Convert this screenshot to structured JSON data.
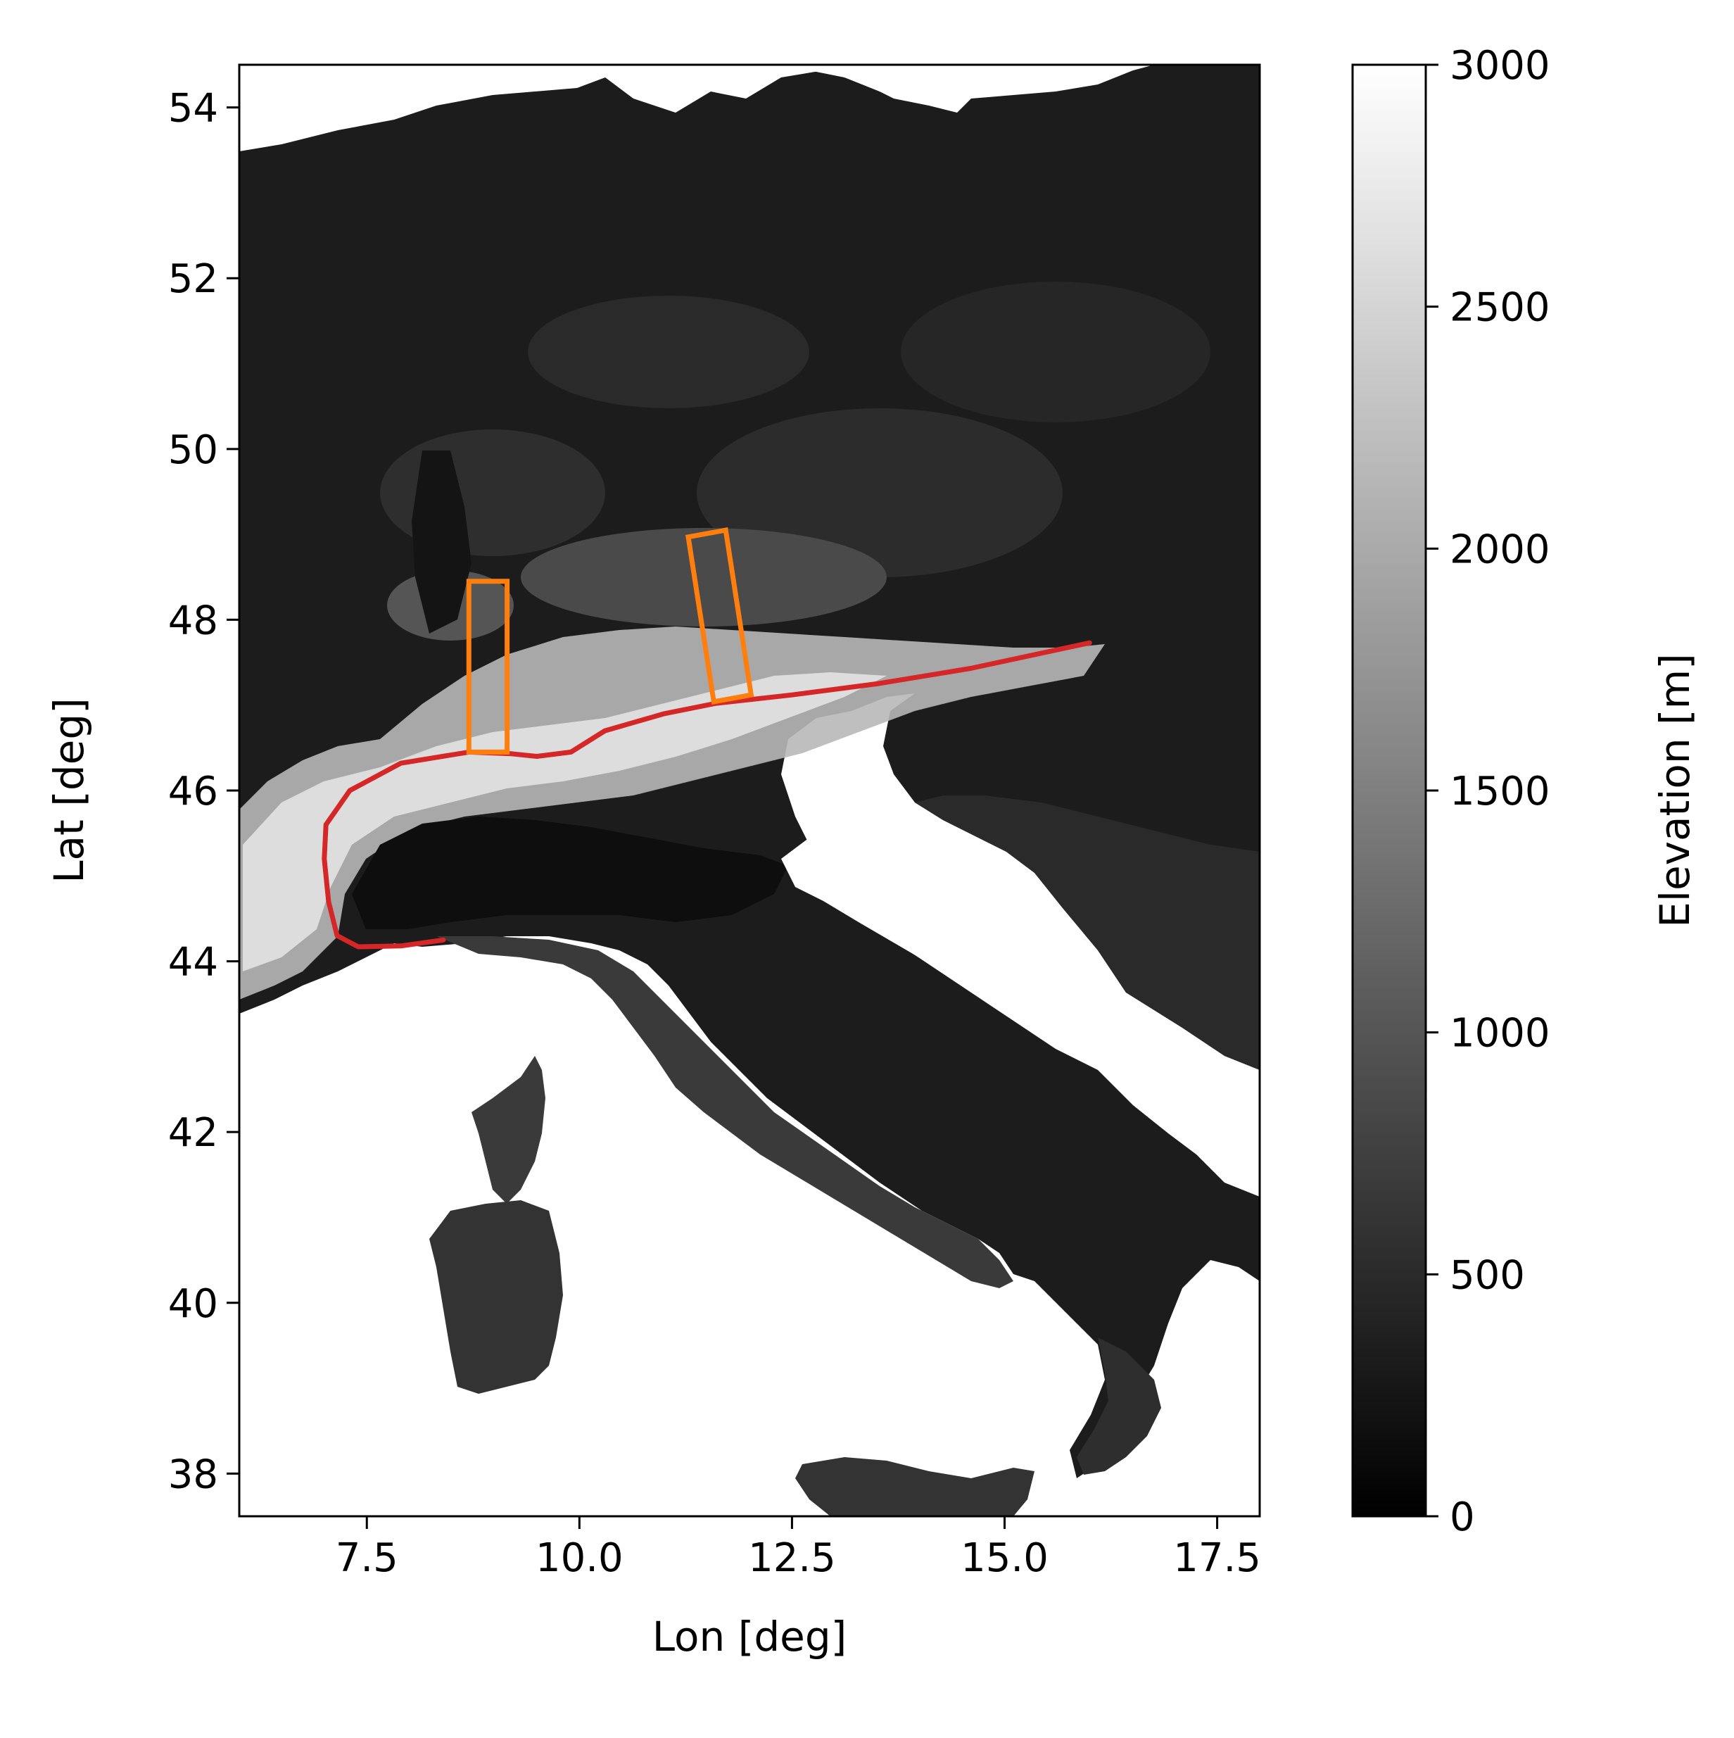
{
  "chart_data": {
    "type": "map",
    "xlabel": "Lon [deg]",
    "ylabel": "Lat [deg]",
    "xlim": [
      6.0,
      18.0
    ],
    "ylim": [
      37.5,
      54.5
    ],
    "x_ticks": [
      7.5,
      10.0,
      12.5,
      15.0,
      17.5
    ],
    "x_tick_labels": [
      "7.5",
      "10.0",
      "12.5",
      "15.0",
      "17.5"
    ],
    "y_ticks": [
      38,
      40,
      42,
      44,
      46,
      48,
      50,
      52,
      54
    ],
    "y_tick_labels": [
      "38",
      "40",
      "42",
      "44",
      "46",
      "48",
      "50",
      "52",
      "54"
    ],
    "background": "grayscale elevation raster (DEM) of Central Europe and Italy; sea shown white",
    "colorbar": {
      "label": "Elevation [m]",
      "colormap": "gray",
      "range": [
        0,
        3000
      ],
      "ticks": [
        0,
        500,
        1000,
        1500,
        2000,
        2500,
        3000
      ],
      "tick_labels": [
        "0",
        "500",
        "1000",
        "1500",
        "2000",
        "2500",
        "3000"
      ]
    },
    "overlays": [
      {
        "type": "line",
        "color": "#d62728",
        "points": [
          [
            8.4,
            44.25
          ],
          [
            7.9,
            44.18
          ],
          [
            7.4,
            44.17
          ],
          [
            7.15,
            44.3
          ],
          [
            7.05,
            44.7
          ],
          [
            7.0,
            45.2
          ],
          [
            7.02,
            45.6
          ],
          [
            7.3,
            46.0
          ],
          [
            7.9,
            46.32
          ],
          [
            8.7,
            46.45
          ],
          [
            9.2,
            46.43
          ],
          [
            9.5,
            46.4
          ],
          [
            9.9,
            46.45
          ],
          [
            10.3,
            46.7
          ],
          [
            11.0,
            46.9
          ],
          [
            11.6,
            47.02
          ],
          [
            12.5,
            47.12
          ],
          [
            13.5,
            47.25
          ],
          [
            14.6,
            47.43
          ],
          [
            16.0,
            47.73
          ]
        ]
      },
      {
        "type": "polygon",
        "color": "#ff7f0e",
        "points": [
          [
            8.7,
            46.45
          ],
          [
            8.7,
            48.45
          ],
          [
            9.15,
            48.45
          ],
          [
            9.15,
            46.45
          ]
        ]
      },
      {
        "type": "polygon",
        "color": "#ff7f0e",
        "points": [
          [
            11.58,
            47.04
          ],
          [
            11.28,
            48.97
          ],
          [
            11.72,
            49.05
          ],
          [
            12.02,
            47.12
          ]
        ]
      }
    ]
  }
}
